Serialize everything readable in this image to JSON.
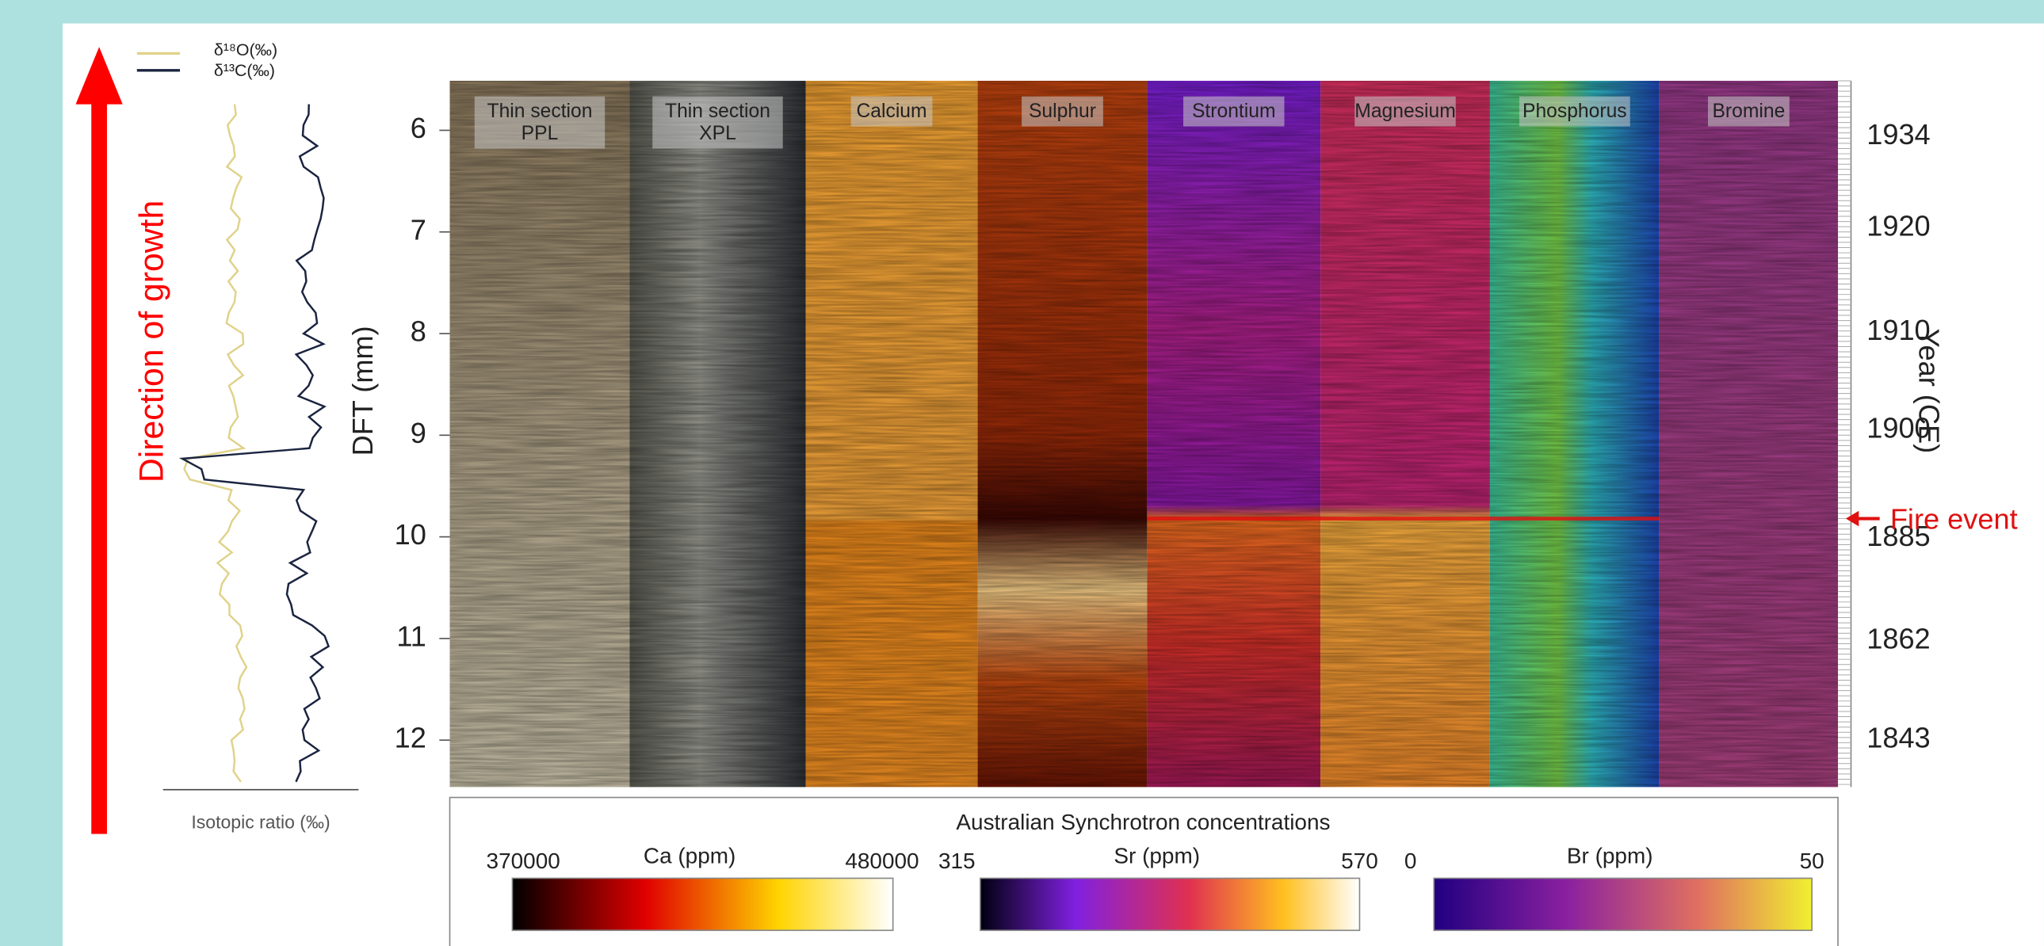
{
  "figure": {
    "legend": {
      "d18O": "δ¹⁸O(‰)",
      "d13C": "δ¹³C(‰)"
    },
    "growth_label": "Direction of growth",
    "isotope_axis_label": "Isotopic ratio (‰)",
    "depth_axis": {
      "label": "DFT (mm)",
      "ticks": [
        6,
        7,
        8,
        9,
        10,
        11,
        12
      ]
    },
    "year_axis": {
      "label": "Year (CE)",
      "ticks": [
        1934,
        1920,
        1910,
        1900,
        1885,
        1862,
        1843
      ]
    },
    "annotation": "Fire event",
    "panels": [
      [
        "Thin section",
        "PPL"
      ],
      [
        "Thin section",
        "XPL"
      ],
      [
        "Calcium"
      ],
      [
        "Sulphur"
      ],
      [
        "Strontium"
      ],
      [
        "Magnesium"
      ],
      [
        "Phosphorus"
      ],
      [
        "Bromine"
      ]
    ],
    "colorbars": {
      "title": "Australian Synchrotron concentrations",
      "bars": [
        {
          "label": "Ca (ppm)",
          "min": 370000,
          "max": 480000
        },
        {
          "label": "Sr (ppm)",
          "min": 315,
          "max": 570
        },
        {
          "label": "Br (ppm)",
          "min": 0,
          "max": 50
        }
      ]
    }
  }
}
